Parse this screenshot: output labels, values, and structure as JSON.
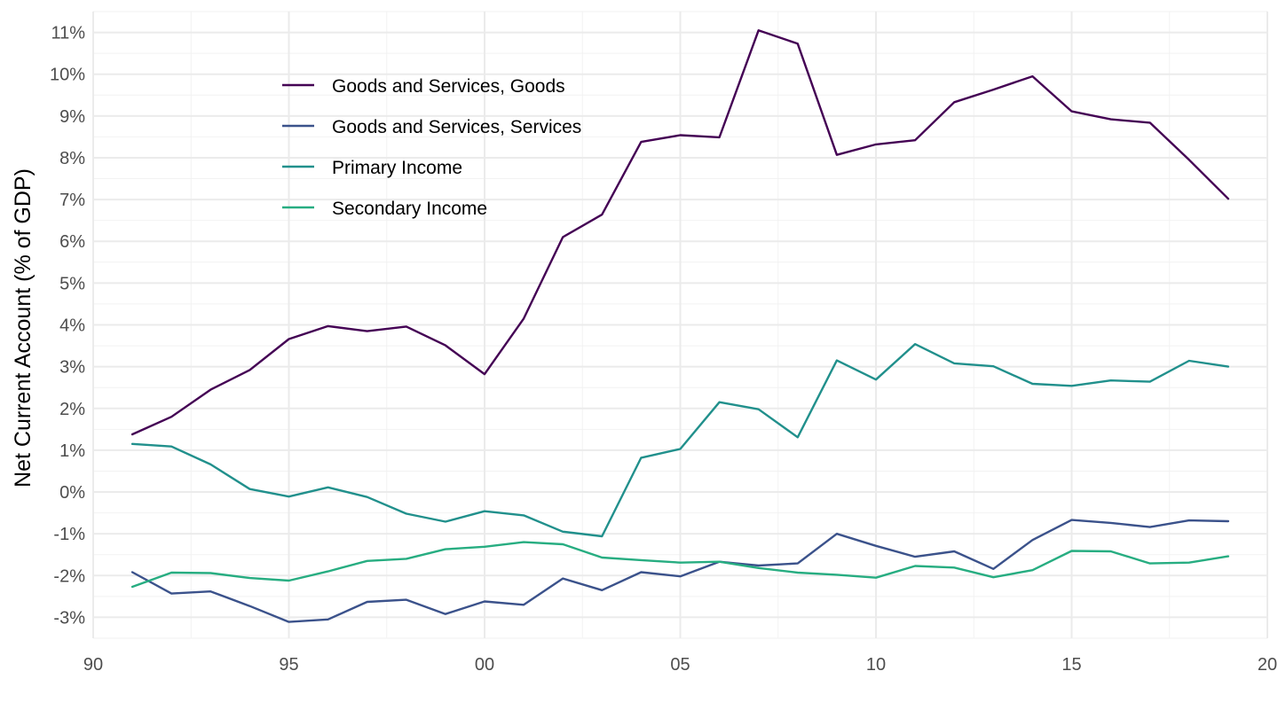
{
  "chart_data": {
    "type": "line",
    "title": "",
    "xlabel": "",
    "ylabel": "Net Current Account (% of GDP)",
    "x": [
      1991,
      1992,
      1993,
      1994,
      1995,
      1996,
      1997,
      1998,
      1999,
      2000,
      2001,
      2002,
      2003,
      2004,
      2005,
      2006,
      2007,
      2008,
      2009,
      2010,
      2011,
      2012,
      2013,
      2014,
      2015,
      2016,
      2017,
      2018,
      2019
    ],
    "xlim": [
      1990,
      2020
    ],
    "ylim": [
      -3.5,
      11.5
    ],
    "x_ticks": [
      1990,
      1995,
      2000,
      2005,
      2010,
      2015,
      2020
    ],
    "x_tick_labels": [
      "90",
      "95",
      "00",
      "05",
      "10",
      "15",
      "20"
    ],
    "y_ticks": [
      -3,
      -2,
      -1,
      0,
      1,
      2,
      3,
      4,
      5,
      6,
      7,
      8,
      9,
      10,
      11
    ],
    "y_tick_labels": [
      "-3%",
      "-2%",
      "-1%",
      "0%",
      "1%",
      "2%",
      "3%",
      "4%",
      "5%",
      "6%",
      "7%",
      "8%",
      "9%",
      "10%",
      "11%"
    ],
    "grid": true,
    "legend_position": "top-left",
    "series": [
      {
        "name": "Goods and Services, Goods",
        "color": "#440154",
        "values": [
          1.38,
          1.8,
          2.45,
          2.92,
          3.66,
          3.97,
          3.85,
          3.96,
          3.51,
          2.82,
          4.15,
          6.1,
          6.64,
          8.38,
          8.54,
          8.49,
          11.05,
          10.73,
          8.07,
          8.32,
          8.42,
          9.33,
          9.63,
          9.95,
          9.11,
          8.92,
          8.84,
          7.95,
          7.02
        ]
      },
      {
        "name": "Goods and Services, Services",
        "color": "#3b528b",
        "values": [
          -1.92,
          -2.43,
          -2.38,
          -2.73,
          -3.11,
          -3.05,
          -2.63,
          -2.58,
          -2.92,
          -2.62,
          -2.7,
          -2.07,
          -2.35,
          -1.92,
          -2.02,
          -1.67,
          -1.76,
          -1.71,
          -1.0,
          -1.29,
          -1.55,
          -1.42,
          -1.84,
          -1.15,
          -0.67,
          -0.74,
          -0.84,
          -0.68,
          -0.7
        ]
      },
      {
        "name": "Primary Income",
        "color": "#21908c",
        "values": [
          1.15,
          1.09,
          0.66,
          0.07,
          -0.11,
          0.11,
          -0.12,
          -0.52,
          -0.71,
          -0.46,
          -0.56,
          -0.95,
          -1.06,
          0.82,
          1.03,
          2.15,
          1.98,
          1.31,
          3.15,
          2.69,
          3.54,
          3.08,
          3.01,
          2.59,
          2.54,
          2.67,
          2.64,
          3.14,
          3.0
        ]
      },
      {
        "name": "Secondary Income",
        "color": "#27ad81",
        "values": [
          -2.27,
          -1.93,
          -1.94,
          -2.06,
          -2.12,
          -1.9,
          -1.65,
          -1.6,
          -1.37,
          -1.31,
          -1.2,
          -1.25,
          -1.57,
          -1.63,
          -1.69,
          -1.67,
          -1.82,
          -1.93,
          -1.98,
          -2.05,
          -1.77,
          -1.81,
          -2.04,
          -1.87,
          -1.41,
          -1.42,
          -1.71,
          -1.69,
          -1.54
        ]
      }
    ]
  }
}
